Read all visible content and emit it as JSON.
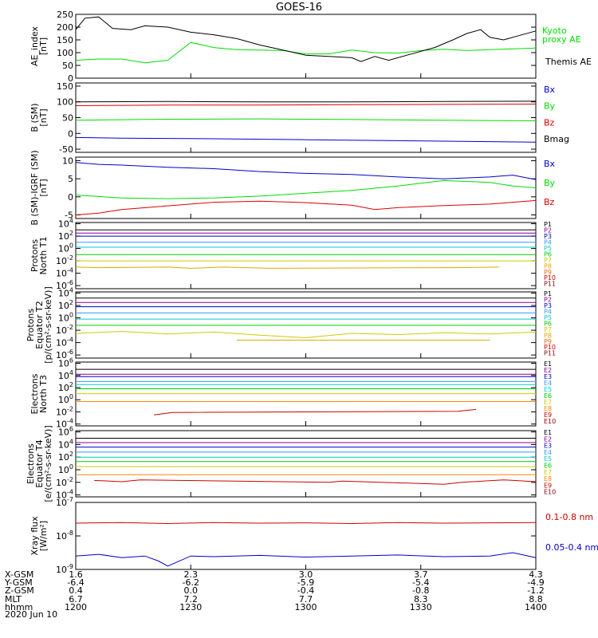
{
  "title": "GOES-16",
  "chart_data": [
    {
      "type": "line",
      "ylabel": [
        "AE_index",
        "[nT]"
      ],
      "ylim": [
        0,
        250
      ],
      "yticks": [
        "0",
        "50",
        "100",
        "150",
        "200",
        "250"
      ],
      "ytick_values": [
        0,
        50,
        100,
        150,
        200,
        250
      ],
      "yscale": "linear",
      "series": [
        {
          "name": "Kyoto proxy AE",
          "label_lines": [
            "Kyoto",
            "proxy AE"
          ],
          "color": "#00dd00",
          "x": [
            0,
            0.05,
            0.1,
            0.15,
            0.2,
            0.25,
            0.3,
            0.35,
            0.4,
            0.45,
            0.5,
            0.55,
            0.6,
            0.65,
            0.7,
            0.75,
            0.8,
            0.85,
            0.9,
            0.95,
            1.0
          ],
          "y": [
            70,
            75,
            75,
            60,
            70,
            140,
            120,
            112,
            110,
            108,
            95,
            95,
            110,
            100,
            98,
            108,
            113,
            108,
            112,
            115,
            118
          ]
        },
        {
          "name": "Themis AE",
          "label_lines": [
            "Themis AE"
          ],
          "color": "#000000",
          "x": [
            0,
            0.02,
            0.05,
            0.08,
            0.12,
            0.15,
            0.2,
            0.25,
            0.3,
            0.35,
            0.4,
            0.45,
            0.5,
            0.55,
            0.6,
            0.62,
            0.65,
            0.68,
            0.72,
            0.75,
            0.78,
            0.82,
            0.85,
            0.88,
            0.9,
            0.93,
            0.96,
            1.0
          ],
          "y": [
            190,
            235,
            240,
            195,
            190,
            205,
            200,
            180,
            170,
            155,
            130,
            110,
            90,
            85,
            80,
            65,
            85,
            70,
            90,
            105,
            120,
            150,
            175,
            190,
            160,
            150,
            165,
            185
          ]
        }
      ]
    },
    {
      "type": "line",
      "ylabel": [
        "B (SM)",
        "[nT]"
      ],
      "ylim": [
        -60,
        160
      ],
      "yticks": [
        "-50",
        "0",
        "50",
        "100",
        "150"
      ],
      "ytick_values": [
        -50,
        0,
        50,
        100,
        150
      ],
      "yscale": "linear",
      "series": [
        {
          "name": "Bx",
          "color": "#0000cc",
          "x": [
            0,
            0.1,
            0.3,
            0.5,
            0.7,
            0.9,
            1.0
          ],
          "y": [
            -13,
            -15,
            -17,
            -20,
            -23,
            -26,
            -28
          ]
        },
        {
          "name": "By",
          "color": "#00dd00",
          "x": [
            0,
            0.2,
            0.4,
            0.6,
            0.8,
            1.0
          ],
          "y": [
            42,
            45,
            46,
            44,
            42,
            40
          ]
        },
        {
          "name": "Bz",
          "color": "#dd0000",
          "x": [
            0,
            0.2,
            0.4,
            0.6,
            0.8,
            1.0
          ],
          "y": [
            88,
            90,
            90,
            91,
            92,
            93
          ]
        },
        {
          "name": "Bmag",
          "color": "#000000",
          "x": [
            0,
            0.2,
            0.4,
            0.6,
            0.8,
            1.0
          ],
          "y": [
            100,
            101,
            100,
            100,
            101,
            102
          ]
        }
      ]
    },
    {
      "type": "line",
      "ylabel": [
        "B (SM)-IGRF (SM)",
        "[nT]"
      ],
      "ylim": [
        -6,
        11
      ],
      "yticks": [
        "-5",
        "0",
        "5",
        "10"
      ],
      "ytick_values": [
        -5,
        0,
        5,
        10
      ],
      "yscale": "linear",
      "series": [
        {
          "name": "Bx",
          "color": "#0000cc",
          "x": [
            0,
            0.05,
            0.1,
            0.2,
            0.3,
            0.4,
            0.5,
            0.6,
            0.7,
            0.8,
            0.9,
            0.95,
            1.0
          ],
          "y": [
            9.5,
            9,
            8.8,
            8.2,
            7.8,
            7,
            6.5,
            6.2,
            5.5,
            5,
            5.5,
            6,
            4.8
          ]
        },
        {
          "name": "By",
          "color": "#00dd00",
          "x": [
            0,
            0.1,
            0.2,
            0.3,
            0.4,
            0.5,
            0.6,
            0.7,
            0.8,
            0.9,
            0.95,
            1.0
          ],
          "y": [
            0.5,
            -0.3,
            -0.5,
            -0.3,
            0.2,
            1.0,
            1.8,
            3.0,
            4.5,
            4.0,
            3.0,
            2.5
          ]
        },
        {
          "name": "Bz",
          "color": "#dd0000",
          "x": [
            0,
            0.05,
            0.1,
            0.2,
            0.3,
            0.4,
            0.5,
            0.6,
            0.65,
            0.7,
            0.8,
            0.9,
            1.0
          ],
          "y": [
            -5,
            -4.5,
            -3.5,
            -2.5,
            -1.5,
            -1.2,
            -1.6,
            -2.3,
            -3.5,
            -3.0,
            -2.4,
            -2.0,
            -1.0
          ]
        }
      ]
    },
    {
      "type": "line",
      "ylabel": [
        "Protons",
        "North T1"
      ],
      "ylim": [
        -6.5,
        4.2
      ],
      "yticks": [
        "10^-6",
        "10^-4",
        "10^-2",
        "10^0",
        "10^2",
        "10^4"
      ],
      "ytick_values": [
        -6,
        -4,
        -2,
        0,
        2,
        4
      ],
      "yscale": "log",
      "series": [
        {
          "name": "P1",
          "color": "#000000",
          "x": [
            0,
            1
          ],
          "y": [
            3.0,
            3.0
          ]
        },
        {
          "name": "P2",
          "color": "#880088",
          "x": [
            0,
            1
          ],
          "y": [
            2.5,
            2.5
          ]
        },
        {
          "name": "P3",
          "color": "#0000cc",
          "x": [
            0,
            1
          ],
          "y": [
            2.0,
            2.0
          ]
        },
        {
          "name": "P4",
          "color": "#3399ff",
          "x": [
            0,
            1
          ],
          "y": [
            1.0,
            1.0
          ]
        },
        {
          "name": "P5",
          "color": "#00cccc",
          "x": [
            0,
            1
          ],
          "y": [
            0.2,
            0.2
          ]
        },
        {
          "name": "P6",
          "color": "#00cc00",
          "x": [
            0,
            1
          ],
          "y": [
            -1.0,
            -1.0
          ]
        },
        {
          "name": "P7",
          "color": "#cccc00",
          "x": [
            0,
            1
          ],
          "y": [
            -2.0,
            -2.0
          ]
        },
        {
          "name": "P8",
          "color": "#ddaa00",
          "x": [
            0,
            0.05,
            0.2,
            0.25,
            0.32,
            0.42,
            0.82,
            0.92
          ],
          "y": [
            -3.0,
            -3.1,
            -3.0,
            -3.2,
            -3.0,
            -3.2,
            -3.1,
            -3.0
          ]
        },
        {
          "name": "P9",
          "color": "#ff6600",
          "x": [],
          "y": []
        },
        {
          "name": "P10",
          "color": "#cc0000",
          "x": [],
          "y": []
        },
        {
          "name": "P11",
          "color": "#880000",
          "x": [],
          "y": []
        }
      ]
    },
    {
      "type": "line",
      "ylabel": [
        "Protons",
        "Equator T2",
        "[p/(cm²-s-sr-keV)]"
      ],
      "ylim": [
        -6.5,
        4.2
      ],
      "yticks": [
        "10^-6",
        "10^-4",
        "10^-2",
        "10^0",
        "10^2",
        "10^4"
      ],
      "ytick_values": [
        -6,
        -4,
        -2,
        0,
        2,
        4
      ],
      "yscale": "log",
      "series": [
        {
          "name": "P1",
          "color": "#000000",
          "x": [
            0,
            1
          ],
          "y": [
            3.2,
            3.2
          ]
        },
        {
          "name": "P2",
          "color": "#880088",
          "x": [
            0,
            1
          ],
          "y": [
            2.5,
            2.5
          ]
        },
        {
          "name": "P3",
          "color": "#0000cc",
          "x": [
            0,
            1
          ],
          "y": [
            1.8,
            1.8
          ]
        },
        {
          "name": "P4",
          "color": "#3399ff",
          "x": [
            0,
            1
          ],
          "y": [
            0.8,
            0.8
          ]
        },
        {
          "name": "P5",
          "color": "#00cccc",
          "x": [
            0,
            1
          ],
          "y": [
            -0.2,
            -0.2
          ]
        },
        {
          "name": "P6",
          "color": "#00cc00",
          "x": [
            0,
            1
          ],
          "y": [
            -1.2,
            -1.2
          ]
        },
        {
          "name": "P7",
          "color": "#cccc00",
          "x": [
            0,
            0.1,
            0.2,
            0.3,
            0.4,
            0.5,
            0.6,
            0.7,
            0.8,
            0.9,
            1.0
          ],
          "y": [
            -2.5,
            -2.2,
            -2.6,
            -2.3,
            -2.8,
            -3.2,
            -2.5,
            -2.7,
            -2.4,
            -2.6,
            -2.3
          ]
        },
        {
          "name": "P8",
          "color": "#ddaa00",
          "x": [
            0.35,
            0.55,
            0.7,
            0.8,
            0.9
          ],
          "y": [
            -3.6,
            -3.6,
            -3.6,
            -3.6,
            -3.6
          ]
        },
        {
          "name": "P9",
          "color": "#ff6600",
          "x": [],
          "y": []
        },
        {
          "name": "P10",
          "color": "#cc0000",
          "x": [],
          "y": []
        },
        {
          "name": "P11",
          "color": "#880000",
          "x": [],
          "y": []
        }
      ]
    },
    {
      "type": "line",
      "ylabel": [
        "Electrons",
        "North T3"
      ],
      "ylim": [
        -4.3,
        6.2
      ],
      "yticks": [
        "10^-4",
        "10^-2",
        "10^0",
        "10^2",
        "10^4",
        "10^6"
      ],
      "ytick_values": [
        -4,
        -2,
        0,
        2,
        4,
        6
      ],
      "yscale": "log",
      "series": [
        {
          "name": "E1",
          "color": "#000000",
          "x": [
            0,
            1
          ],
          "y": [
            5.0,
            5.0
          ]
        },
        {
          "name": "E2",
          "color": "#880088",
          "x": [
            0,
            1
          ],
          "y": [
            4.2,
            4.2
          ]
        },
        {
          "name": "E3",
          "color": "#0000cc",
          "x": [
            0,
            1
          ],
          "y": [
            3.8,
            3.8
          ]
        },
        {
          "name": "E4",
          "color": "#3399ff",
          "x": [
            0,
            1
          ],
          "y": [
            3.0,
            3.0
          ]
        },
        {
          "name": "E5",
          "color": "#00cccc",
          "x": [
            0,
            1
          ],
          "y": [
            2.5,
            2.5
          ]
        },
        {
          "name": "E6",
          "color": "#00cc00",
          "x": [
            0,
            1
          ],
          "y": [
            1.8,
            1.8
          ]
        },
        {
          "name": "E7",
          "color": "#cccc00",
          "x": [
            0,
            1
          ],
          "y": [
            1.0,
            1.0
          ]
        },
        {
          "name": "E8",
          "color": "#ff8800",
          "x": [
            0,
            1
          ],
          "y": [
            -0.3,
            -0.3
          ]
        },
        {
          "name": "E9",
          "color": "#cc0000",
          "x": [
            0.17,
            0.21,
            0.83,
            0.87
          ],
          "y": [
            -2.5,
            -2.1,
            -1.9,
            -1.6
          ]
        },
        {
          "name": "E10",
          "color": "#880000",
          "x": [],
          "y": []
        }
      ]
    },
    {
      "type": "line",
      "ylabel": [
        "Electrons",
        "Equator T4",
        "[e/(cm²-s-sr-keV)]"
      ],
      "ylim": [
        -4.3,
        6.2
      ],
      "yticks": [
        "10^-4",
        "10^-2",
        "10^0",
        "10^2",
        "10^4",
        "10^6"
      ],
      "ytick_values": [
        -4,
        -2,
        0,
        2,
        4,
        6
      ],
      "yscale": "log",
      "series": [
        {
          "name": "E1",
          "color": "#000000",
          "x": [
            0,
            1
          ],
          "y": [
            5.0,
            5.0
          ]
        },
        {
          "name": "E2",
          "color": "#880088",
          "x": [
            0,
            1
          ],
          "y": [
            4.3,
            4.3
          ]
        },
        {
          "name": "E3",
          "color": "#0000cc",
          "x": [
            0,
            1
          ],
          "y": [
            3.6,
            3.6
          ]
        },
        {
          "name": "E4",
          "color": "#3399ff",
          "x": [
            0,
            1
          ],
          "y": [
            2.8,
            2.8
          ]
        },
        {
          "name": "E5",
          "color": "#00cccc",
          "x": [
            0,
            1
          ],
          "y": [
            2.0,
            2.0
          ]
        },
        {
          "name": "E6",
          "color": "#00cc00",
          "x": [
            0,
            1
          ],
          "y": [
            1.3,
            1.3
          ]
        },
        {
          "name": "E7",
          "color": "#cccc00",
          "x": [
            0,
            1
          ],
          "y": [
            0.5,
            0.5
          ]
        },
        {
          "name": "E8",
          "color": "#ff8800",
          "x": [
            0,
            1
          ],
          "y": [
            -0.8,
            -0.8
          ]
        },
        {
          "name": "E9",
          "color": "#cc0000",
          "x": [
            0.04,
            0.1,
            0.14,
            0.55,
            0.58,
            0.8,
            0.84,
            0.93,
            1.0
          ],
          "y": [
            -1.7,
            -1.9,
            -1.6,
            -2.0,
            -1.8,
            -2.3,
            -2.0,
            -1.6,
            -1.9
          ]
        },
        {
          "name": "E10",
          "color": "#880000",
          "x": [],
          "y": []
        }
      ]
    },
    {
      "type": "line",
      "ylabel": [
        "Xray flux",
        "[W/m²]"
      ],
      "ylim": [
        -9,
        -7
      ],
      "yticks": [
        "10^-9",
        "10^-8",
        "10^-7"
      ],
      "ytick_values": [
        -9,
        -8,
        -7
      ],
      "yscale": "log",
      "series": [
        {
          "name": "0.1-0.8 nm",
          "color": "#cc0000",
          "x": [
            0,
            0.1,
            0.2,
            0.3,
            0.4,
            0.5,
            0.6,
            0.7,
            0.8,
            0.9,
            1.0
          ],
          "y": [
            -7.62,
            -7.6,
            -7.63,
            -7.6,
            -7.62,
            -7.61,
            -7.63,
            -7.6,
            -7.62,
            -7.61,
            -7.6
          ]
        },
        {
          "name": "0.05-0.4 nm",
          "color": "#0000cc",
          "x": [
            0,
            0.05,
            0.1,
            0.15,
            0.18,
            0.2,
            0.25,
            0.3,
            0.4,
            0.5,
            0.6,
            0.7,
            0.8,
            0.9,
            0.95,
            1.0
          ],
          "y": [
            -8.6,
            -8.55,
            -8.65,
            -8.6,
            -8.75,
            -8.9,
            -8.6,
            -8.62,
            -8.58,
            -8.63,
            -8.6,
            -8.57,
            -8.62,
            -8.6,
            -8.5,
            -8.65
          ]
        }
      ]
    }
  ],
  "xaxis": {
    "row_labels": [
      "X-GSM",
      "Y-GSM",
      "Z-GSM",
      "MLT",
      "hhmm",
      "2020 Jun 10"
    ],
    "ticks": [
      {
        "values": [
          "1.6",
          "-6.4",
          "0.4",
          "6.7",
          "1200"
        ]
      },
      {
        "values": [
          "2.3",
          "-6.2",
          "0.0",
          "7.2",
          "1230"
        ]
      },
      {
        "values": [
          "3.0",
          "-5.9",
          "-0.4",
          "7.7",
          "1300"
        ]
      },
      {
        "values": [
          "3.7",
          "-5.4",
          "-0.8",
          "8.3",
          "1330"
        ]
      },
      {
        "values": [
          "4.3",
          "-4.9",
          "-1.2",
          "8.8",
          "1400"
        ]
      }
    ]
  }
}
